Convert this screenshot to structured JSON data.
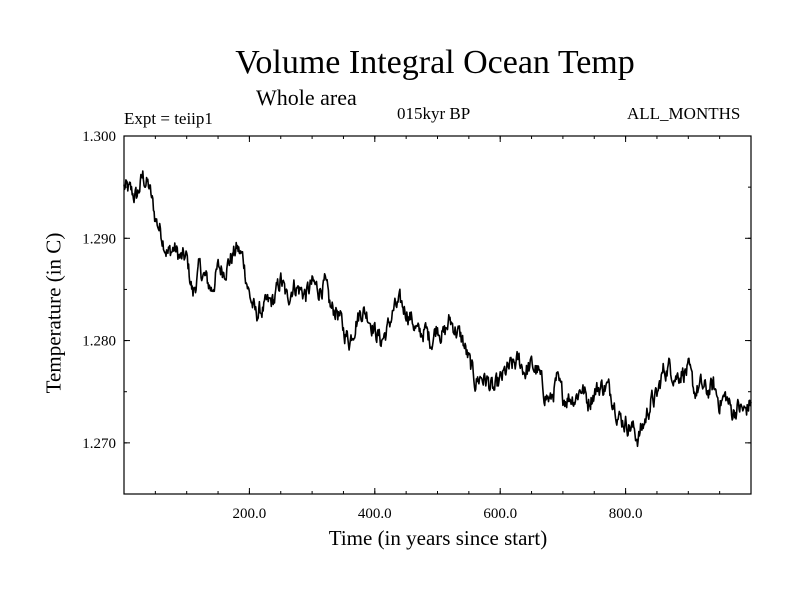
{
  "chart_data": {
    "type": "line",
    "title": "Volume Integral Ocean Temp",
    "subtitle": "Whole area",
    "annotations": {
      "experiment": "Expt = teiip1",
      "period": "015kyr BP",
      "months": "ALL_MONTHS"
    },
    "xlabel": "Time (in years since start)",
    "ylabel": "Temperature (in C)",
    "xlim": [
      0,
      1000
    ],
    "ylim": [
      1.265,
      1.3
    ],
    "x_ticks": [
      200,
      400,
      600,
      800
    ],
    "x_tick_labels": [
      "200.0",
      "400.0",
      "600.0",
      "800.0"
    ],
    "y_ticks": [
      1.27,
      1.28,
      1.29,
      1.3
    ],
    "y_tick_labels": [
      "1.270",
      "1.280",
      "1.290",
      "1.300"
    ],
    "grid": false,
    "series": [
      {
        "x": [
          0,
          10,
          20,
          30,
          40,
          50,
          60,
          70,
          80,
          90,
          100,
          110,
          120,
          130,
          140,
          150,
          160,
          170,
          180,
          190,
          200,
          210,
          220,
          230,
          240,
          250,
          260,
          270,
          280,
          290,
          300,
          310,
          320,
          330,
          340,
          350,
          360,
          370,
          380,
          390,
          400,
          410,
          420,
          430,
          440,
          450,
          460,
          470,
          480,
          490,
          500,
          510,
          520,
          530,
          540,
          550,
          560,
          570,
          580,
          590,
          600,
          610,
          620,
          630,
          640,
          650,
          660,
          670,
          680,
          690,
          700,
          710,
          720,
          730,
          740,
          750,
          760,
          770,
          780,
          790,
          800,
          810,
          820,
          830,
          840,
          850,
          860,
          870,
          880,
          890,
          900,
          910,
          920,
          930,
          940,
          950,
          960,
          970,
          980,
          990,
          1000
        ],
        "values": [
          1.295,
          1.2945,
          1.294,
          1.296,
          1.295,
          1.292,
          1.2905,
          1.2885,
          1.289,
          1.288,
          1.288,
          1.2845,
          1.287,
          1.286,
          1.285,
          1.287,
          1.287,
          1.288,
          1.289,
          1.288,
          1.2845,
          1.2825,
          1.283,
          1.2835,
          1.284,
          1.286,
          1.284,
          1.2855,
          1.285,
          1.2845,
          1.2855,
          1.285,
          1.2855,
          1.283,
          1.283,
          1.281,
          1.28,
          1.282,
          1.283,
          1.2825,
          1.281,
          1.28,
          1.281,
          1.283,
          1.2835,
          1.283,
          1.282,
          1.2805,
          1.281,
          1.28,
          1.2815,
          1.2805,
          1.282,
          1.281,
          1.28,
          1.278,
          1.276,
          1.2765,
          1.276,
          1.275,
          1.276,
          1.277,
          1.2775,
          1.278,
          1.277,
          1.2775,
          1.277,
          1.275,
          1.274,
          1.276,
          1.2745,
          1.2745,
          1.2745,
          1.2755,
          1.274,
          1.275,
          1.2755,
          1.2755,
          1.2745,
          1.2725,
          1.272,
          1.2715,
          1.2705,
          1.272,
          1.274,
          1.2745,
          1.277,
          1.2775,
          1.2765,
          1.277,
          1.277,
          1.275,
          1.2755,
          1.275,
          1.2755,
          1.274,
          1.2745,
          1.273,
          1.2735,
          1.273,
          1.274
        ]
      }
    ]
  }
}
